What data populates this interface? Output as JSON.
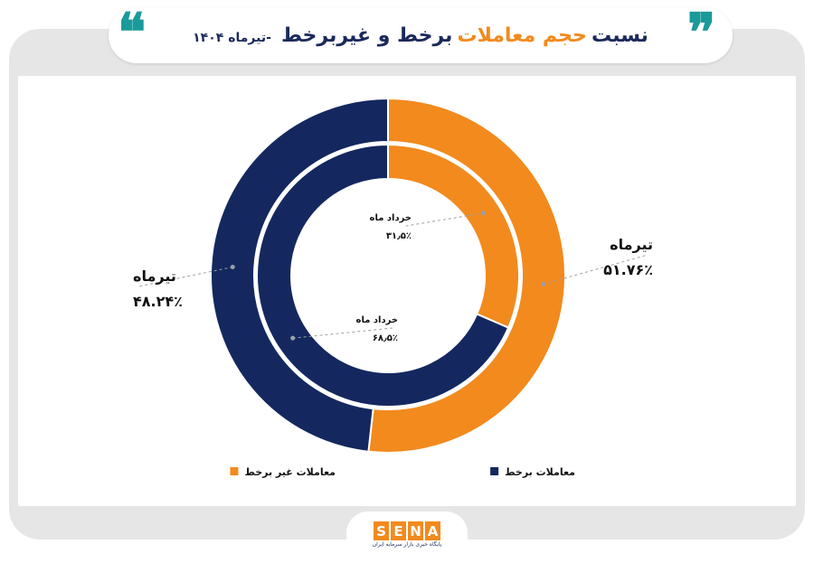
{
  "header": {
    "title_part1": "نسبت",
    "title_accent": "حجم معاملات",
    "title_part2": "برخط و غیربرخط",
    "subtitle": "-تیرماه ۱۴۰۴",
    "open_quote": "❝",
    "close_quote": "❞"
  },
  "colors": {
    "online": "#14285f",
    "offline": "#f28a1e",
    "quote_accent": "#1a9a9a",
    "title_dark": "#1b2a5c",
    "frame_gray": "#e6e6e6"
  },
  "chart_data": [
    {
      "type": "pie",
      "variant": "donut-outer-ring",
      "period_label": "تیرماه",
      "slices": [
        {
          "name": "معاملات غیر برخط",
          "value": 51.76,
          "label": "۵۱.۷۶٪",
          "color": "#f28a1e"
        },
        {
          "name": "معاملات برخط",
          "value": 48.24,
          "label": "۴۸.۲۴٪",
          "color": "#14285f"
        }
      ]
    },
    {
      "type": "pie",
      "variant": "donut-inner-ring",
      "period_label": "خرداد ماه",
      "slices": [
        {
          "name": "معاملات غیر برخط",
          "value": 31.5,
          "label": "۳۱٫۵٪",
          "color": "#f28a1e"
        },
        {
          "name": "معاملات برخط",
          "value": 68.5,
          "label": "۶۸٫۵٪",
          "color": "#14285f"
        }
      ]
    }
  ],
  "legend": {
    "items": [
      {
        "label": "معاملات غیر برخط",
        "color": "#f28a1e"
      },
      {
        "label": "معاملات برخط",
        "color": "#14285f"
      }
    ],
    "placement": "bottom"
  },
  "footer": {
    "logo_letters": [
      "S",
      "E",
      "N",
      "A"
    ],
    "tagline": "پایگاه خبری بازار سرمایه ایران"
  }
}
